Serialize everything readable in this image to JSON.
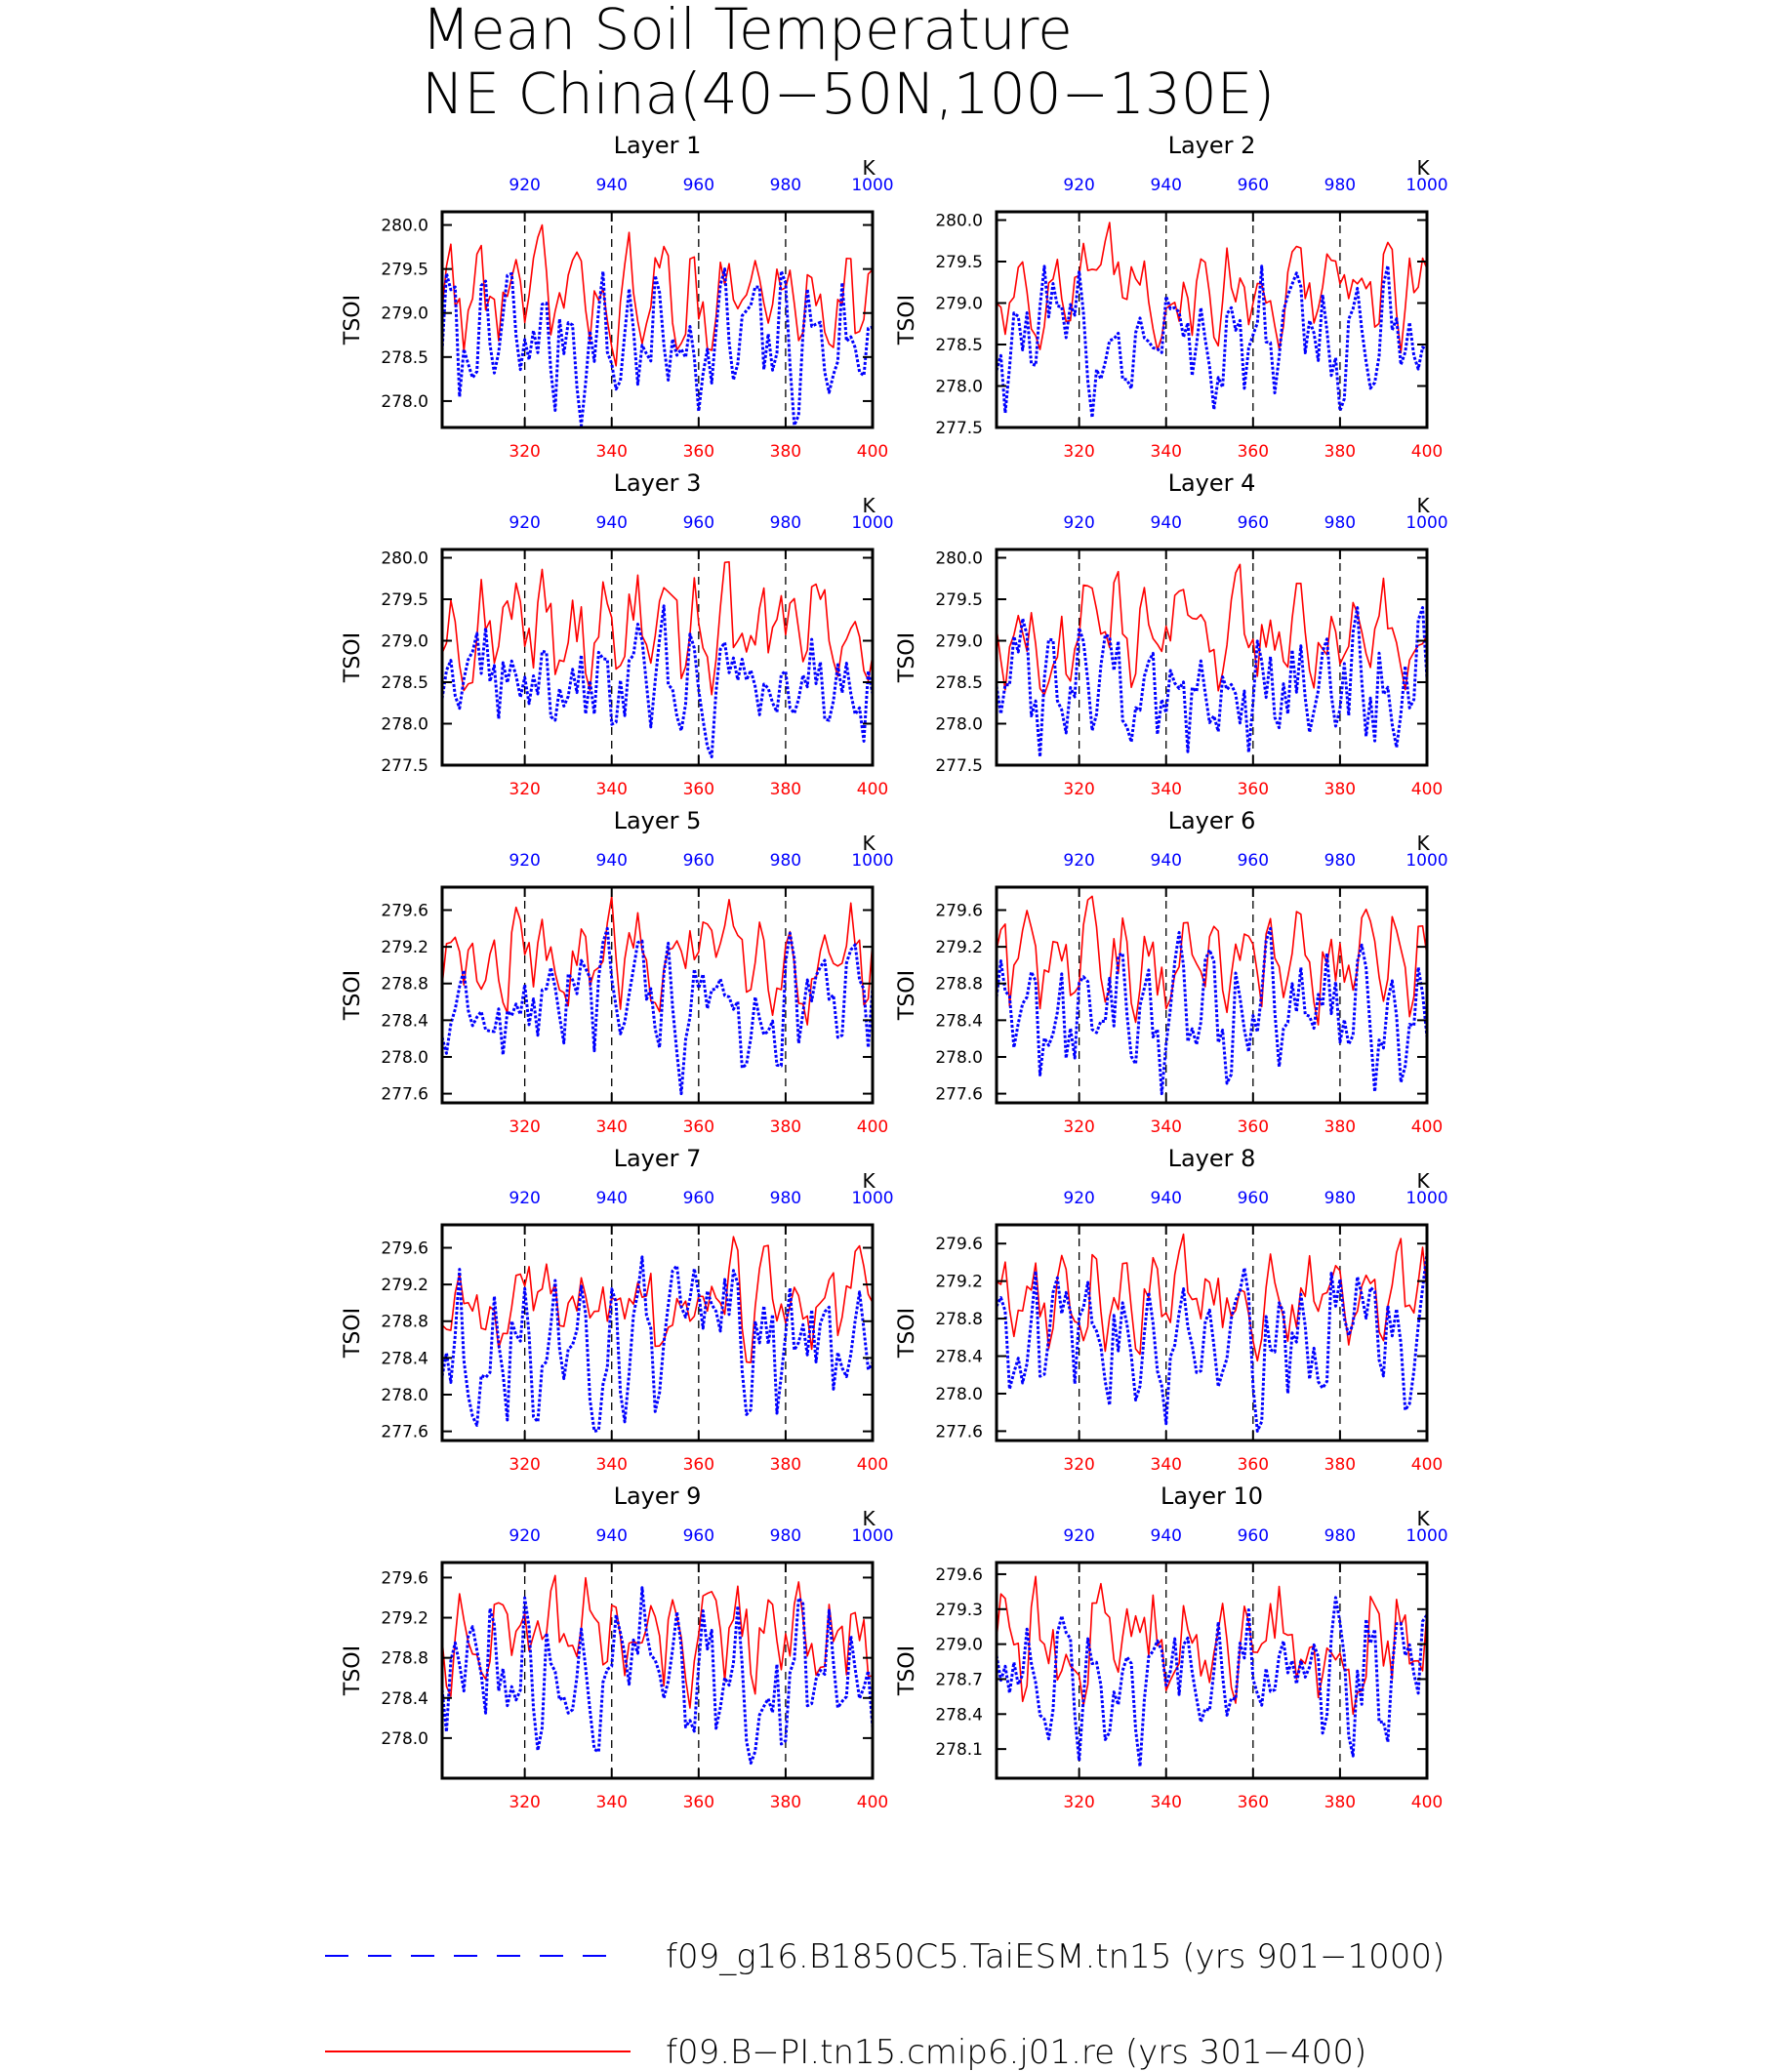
{
  "title_line1": "Mean Soil Temperature",
  "title_line2": "NE China(40−50N,100−130E)",
  "top_axis_unit": "K",
  "colors": {
    "series_a": "#0000ff",
    "series_b": "#ff0000",
    "ref": "#000000"
  },
  "legend": [
    {
      "label": "f09_g16.B1850C5.TaiESM.tn15 (yrs 901−1000)",
      "color": "#0000ff",
      "style": "dashed"
    },
    {
      "label": "f09.B−PI.tn15.cmip6.j01.re (yrs 301−400)",
      "color": "#ff0000",
      "style": "solid"
    }
  ],
  "chart_data": [
    {
      "type": "line",
      "title": "Layer 1",
      "ylabel": "TSOI",
      "ylim": [
        277.7,
        280.15
      ],
      "yticks": [
        "278.0",
        "278.5",
        "279.0",
        "279.5",
        "280.0"
      ],
      "x_bottom": {
        "range": [
          301,
          400
        ],
        "ticks": [
          "320",
          "340",
          "360",
          "380",
          "400"
        ]
      },
      "x_top": {
        "range": [
          901,
          1000
        ],
        "ticks": [
          "920",
          "940",
          "960",
          "980",
          "1000"
        ]
      },
      "series": [
        {
          "name": "f09_g16.B1850C5.TaiESM.tn15 (yrs 901−1000)",
          "x": "901-1000",
          "mean": 278.8,
          "amp": 0.5,
          "min": 277.72,
          "max": 279.5
        },
        {
          "name": "f09.B−PI.tn15.cmip6.j01.re (yrs 301−400)",
          "x": "301-400",
          "mean": 279.1,
          "amp": 0.45,
          "min": 278.4,
          "max": 280.0
        }
      ]
    },
    {
      "type": "line",
      "title": "Layer 2",
      "ylabel": "TSOI",
      "ylim": [
        277.5,
        280.1
      ],
      "yticks": [
        "277.5",
        "278.0",
        "278.5",
        "279.0",
        "279.5",
        "280.0"
      ],
      "x_bottom": {
        "range": [
          301,
          400
        ],
        "ticks": [
          "320",
          "340",
          "360",
          "380",
          "400"
        ]
      },
      "x_top": {
        "range": [
          901,
          1000
        ],
        "ticks": [
          "920",
          "940",
          "960",
          "980",
          "1000"
        ]
      },
      "series": [
        {
          "name": "f09_g16.B1850C5.TaiESM.tn15 (yrs 901−1000)",
          "x": "901-1000",
          "mean": 278.75,
          "amp": 0.52,
          "min": 277.62,
          "max": 279.45
        },
        {
          "name": "f09.B−PI.tn15.cmip6.j01.re (yrs 301−400)",
          "x": "301-400",
          "mean": 279.05,
          "amp": 0.45,
          "min": 278.4,
          "max": 279.97
        }
      ]
    },
    {
      "type": "line",
      "title": "Layer 3",
      "ylabel": "TSOI",
      "ylim": [
        277.5,
        280.1
      ],
      "yticks": [
        "277.5",
        "278.0",
        "278.5",
        "279.0",
        "279.5",
        "280.0"
      ],
      "x_bottom": {
        "range": [
          301,
          400
        ],
        "ticks": [
          "320",
          "340",
          "360",
          "380",
          "400"
        ]
      },
      "x_top": {
        "range": [
          901,
          1000
        ],
        "ticks": [
          "920",
          "940",
          "960",
          "980",
          "1000"
        ]
      },
      "series": [
        {
          "name": "f09_g16.B1850C5.TaiESM.tn15 (yrs 901−1000)",
          "x": "901-1000",
          "mean": 278.7,
          "amp": 0.52,
          "min": 277.6,
          "max": 279.42
        },
        {
          "name": "f09.B−PI.tn15.cmip6.j01.re (yrs 301−400)",
          "x": "301-400",
          "mean": 279.0,
          "amp": 0.45,
          "min": 278.35,
          "max": 279.95
        }
      ]
    },
    {
      "type": "line",
      "title": "Layer 4",
      "ylabel": "TSOI",
      "ylim": [
        277.5,
        280.1
      ],
      "yticks": [
        "277.5",
        "278.0",
        "278.5",
        "279.0",
        "279.5",
        "280.0"
      ],
      "x_bottom": {
        "range": [
          301,
          400
        ],
        "ticks": [
          "320",
          "340",
          "360",
          "380",
          "400"
        ]
      },
      "x_top": {
        "range": [
          901,
          1000
        ],
        "ticks": [
          "920",
          "940",
          "960",
          "980",
          "1000"
        ]
      },
      "series": [
        {
          "name": "f09_g16.B1850C5.TaiESM.tn15 (yrs 901−1000)",
          "x": "901-1000",
          "mean": 278.7,
          "amp": 0.52,
          "min": 277.6,
          "max": 279.4
        },
        {
          "name": "f09.B−PI.tn15.cmip6.j01.re (yrs 301−400)",
          "x": "301-400",
          "mean": 279.0,
          "amp": 0.45,
          "min": 278.35,
          "max": 279.92
        }
      ]
    },
    {
      "type": "line",
      "title": "Layer 5",
      "ylabel": "TSOI",
      "ylim": [
        277.5,
        279.85
      ],
      "yticks": [
        "277.6",
        "278.0",
        "278.4",
        "278.8",
        "279.2",
        "279.6"
      ],
      "x_bottom": {
        "range": [
          301,
          400
        ],
        "ticks": [
          "320",
          "340",
          "360",
          "380",
          "400"
        ]
      },
      "x_top": {
        "range": [
          901,
          1000
        ],
        "ticks": [
          "920",
          "940",
          "960",
          "980",
          "1000"
        ]
      },
      "series": [
        {
          "name": "f09_g16.B1850C5.TaiESM.tn15 (yrs 901−1000)",
          "x": "901-1000",
          "mean": 278.65,
          "amp": 0.5,
          "min": 277.6,
          "max": 279.4
        },
        {
          "name": "f09.B−PI.tn15.cmip6.j01.re (yrs 301−400)",
          "x": "301-400",
          "mean": 279.0,
          "amp": 0.4,
          "min": 278.35,
          "max": 279.75
        }
      ]
    },
    {
      "type": "line",
      "title": "Layer 6",
      "ylabel": "TSOI",
      "ylim": [
        277.5,
        279.85
      ],
      "yticks": [
        "277.6",
        "278.0",
        "278.4",
        "278.8",
        "279.2",
        "279.6"
      ],
      "x_bottom": {
        "range": [
          301,
          400
        ],
        "ticks": [
          "320",
          "340",
          "360",
          "380",
          "400"
        ]
      },
      "x_top": {
        "range": [
          901,
          1000
        ],
        "ticks": [
          "920",
          "940",
          "960",
          "980",
          "1000"
        ]
      },
      "series": [
        {
          "name": "f09_g16.B1850C5.TaiESM.tn15 (yrs 901−1000)",
          "x": "901-1000",
          "mean": 278.65,
          "amp": 0.5,
          "min": 277.6,
          "max": 279.4
        },
        {
          "name": "f09.B−PI.tn15.cmip6.j01.re (yrs 301−400)",
          "x": "301-400",
          "mean": 279.0,
          "amp": 0.4,
          "min": 278.35,
          "max": 279.75
        }
      ]
    },
    {
      "type": "line",
      "title": "Layer 7",
      "ylabel": "TSOI",
      "ylim": [
        277.5,
        279.85
      ],
      "yticks": [
        "277.6",
        "278.0",
        "278.4",
        "278.8",
        "279.2",
        "279.6"
      ],
      "x_bottom": {
        "range": [
          301,
          400
        ],
        "ticks": [
          "320",
          "340",
          "360",
          "380",
          "400"
        ]
      },
      "x_top": {
        "range": [
          901,
          1000
        ],
        "ticks": [
          "920",
          "940",
          "960",
          "980",
          "1000"
        ]
      },
      "series": [
        {
          "name": "f09_g16.B1850C5.TaiESM.tn15 (yrs 901−1000)",
          "x": "901-1000",
          "mean": 278.65,
          "amp": 0.5,
          "min": 277.6,
          "max": 279.5
        },
        {
          "name": "f09.B−PI.tn15.cmip6.j01.re (yrs 301−400)",
          "x": "301-400",
          "mean": 279.0,
          "amp": 0.4,
          "min": 278.35,
          "max": 279.72
        }
      ]
    },
    {
      "type": "line",
      "title": "Layer 8",
      "ylabel": "TSOI",
      "ylim": [
        277.5,
        279.8
      ],
      "yticks": [
        "277.6",
        "278.0",
        "278.4",
        "278.8",
        "279.2",
        "279.6"
      ],
      "x_bottom": {
        "range": [
          301,
          400
        ],
        "ticks": [
          "320",
          "340",
          "360",
          "380",
          "400"
        ]
      },
      "x_top": {
        "range": [
          901,
          1000
        ],
        "ticks": [
          "920",
          "940",
          "960",
          "980",
          "1000"
        ]
      },
      "series": [
        {
          "name": "f09_g16.B1850C5.TaiESM.tn15 (yrs 901−1000)",
          "x": "901-1000",
          "mean": 278.65,
          "amp": 0.5,
          "min": 277.6,
          "max": 279.5
        },
        {
          "name": "f09.B−PI.tn15.cmip6.j01.re (yrs 301−400)",
          "x": "301-400",
          "mean": 279.0,
          "amp": 0.4,
          "min": 278.35,
          "max": 279.7
        }
      ]
    },
    {
      "type": "line",
      "title": "Layer 9",
      "ylabel": "TSOI",
      "ylim": [
        277.6,
        279.75
      ],
      "yticks": [
        "278.0",
        "278.4",
        "278.8",
        "279.2",
        "279.6"
      ],
      "x_bottom": {
        "range": [
          301,
          400
        ],
        "ticks": [
          "320",
          "340",
          "360",
          "380",
          "400"
        ]
      },
      "x_top": {
        "range": [
          901,
          1000
        ],
        "ticks": [
          "920",
          "940",
          "960",
          "980",
          "1000"
        ]
      },
      "series": [
        {
          "name": "f09_g16.B1850C5.TaiESM.tn15 (yrs 901−1000)",
          "x": "901-1000",
          "mean": 278.6,
          "amp": 0.5,
          "min": 277.75,
          "max": 279.5
        },
        {
          "name": "f09.B−PI.tn15.cmip6.j01.re (yrs 301−400)",
          "x": "301-400",
          "mean": 279.0,
          "amp": 0.38,
          "min": 278.3,
          "max": 279.62
        }
      ]
    },
    {
      "type": "line",
      "title": "Layer 10",
      "ylabel": "TSOI",
      "ylim": [
        277.85,
        279.7
      ],
      "yticks": [
        "278.1",
        "278.4",
        "278.7",
        "279.0",
        "279.3",
        "279.6"
      ],
      "x_bottom": {
        "range": [
          301,
          400
        ],
        "ticks": [
          "320",
          "340",
          "360",
          "380",
          "400"
        ]
      },
      "x_top": {
        "range": [
          901,
          1000
        ],
        "ticks": [
          "920",
          "940",
          "960",
          "980",
          "1000"
        ]
      },
      "series": [
        {
          "name": "f09_g16.B1850C5.TaiESM.tn15 (yrs 901−1000)",
          "x": "901-1000",
          "mean": 278.6,
          "amp": 0.42,
          "min": 277.95,
          "max": 279.4
        },
        {
          "name": "f09.B−PI.tn15.cmip6.j01.re (yrs 301−400)",
          "x": "301-400",
          "mean": 279.0,
          "amp": 0.35,
          "min": 278.4,
          "max": 279.58
        }
      ]
    }
  ]
}
